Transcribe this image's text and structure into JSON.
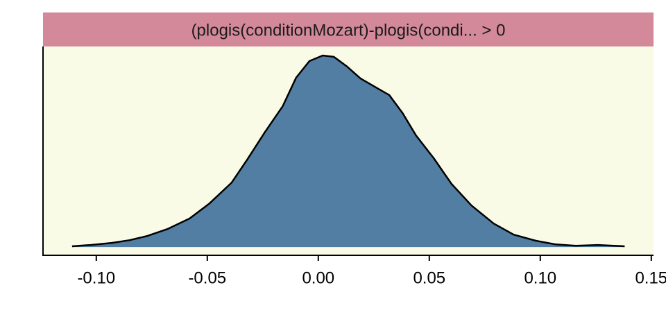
{
  "chart_data": {
    "type": "density",
    "title": "(plogis(conditionMozart)-plogis(condi... > 0",
    "x": [
      -0.1109,
      -0.1025,
      -0.093,
      -0.085,
      -0.077,
      -0.068,
      -0.058,
      -0.049,
      -0.039,
      -0.032,
      -0.024,
      -0.016,
      -0.01,
      -0.004,
      0.002,
      0.007,
      0.013,
      0.019,
      0.026,
      0.032,
      0.038,
      0.044,
      0.052,
      0.06,
      0.069,
      0.079,
      0.088,
      0.098,
      0.107,
      0.116,
      0.126,
      0.138
    ],
    "values": [
      0.004,
      0.011,
      0.022,
      0.036,
      0.058,
      0.094,
      0.149,
      0.228,
      0.337,
      0.457,
      0.601,
      0.736,
      0.884,
      0.971,
      1.0,
      0.993,
      0.942,
      0.88,
      0.833,
      0.793,
      0.699,
      0.583,
      0.464,
      0.33,
      0.217,
      0.123,
      0.065,
      0.033,
      0.014,
      0.007,
      0.011,
      0.004
    ],
    "color": "#527ea3",
    "strip_color": "#d3899a",
    "panel_color": "#fafbe6",
    "xlim": [
      -0.124,
      0.151
    ],
    "xticks": [
      {
        "value": -0.1,
        "label": "-0.10"
      },
      -0.05,
      {
        "value": 0,
        "label": "0.00"
      },
      0.05,
      {
        "value": 0.1,
        "label": "0.10"
      },
      0.15
    ],
    "ylim": [
      -0.043,
      1.047
    ]
  }
}
